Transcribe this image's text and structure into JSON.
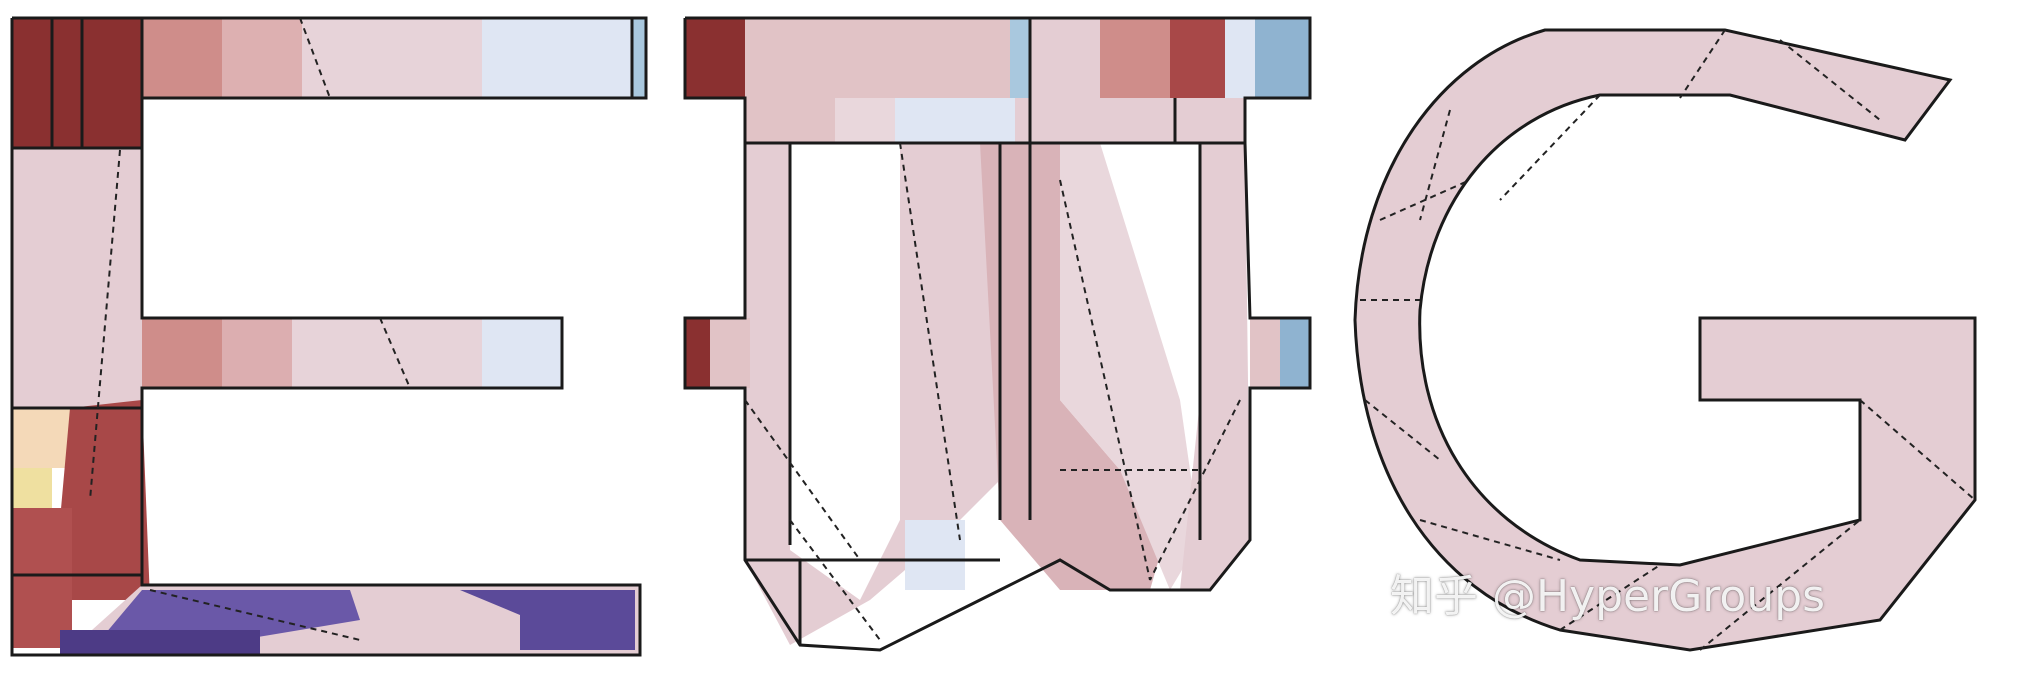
{
  "watermark": {
    "text": "知乎 @HyperGroups"
  },
  "colors": {
    "background": "#ffffff",
    "dark_red": "#7e2a2a",
    "red": "#a84848",
    "salmon": "#cf8d8a",
    "pink": "#e1c3c6",
    "light_pink": "#e9d7dc",
    "pale_blue": "#d9e4f3",
    "light_blue": "#a9c8de",
    "mid_blue": "#7fa7c6",
    "purple": "#6a58a8",
    "dark_purple": "#4d3b86",
    "cream": "#f4d9b8",
    "yellow": "#efe0a0",
    "edge": "#1a1a1a"
  }
}
